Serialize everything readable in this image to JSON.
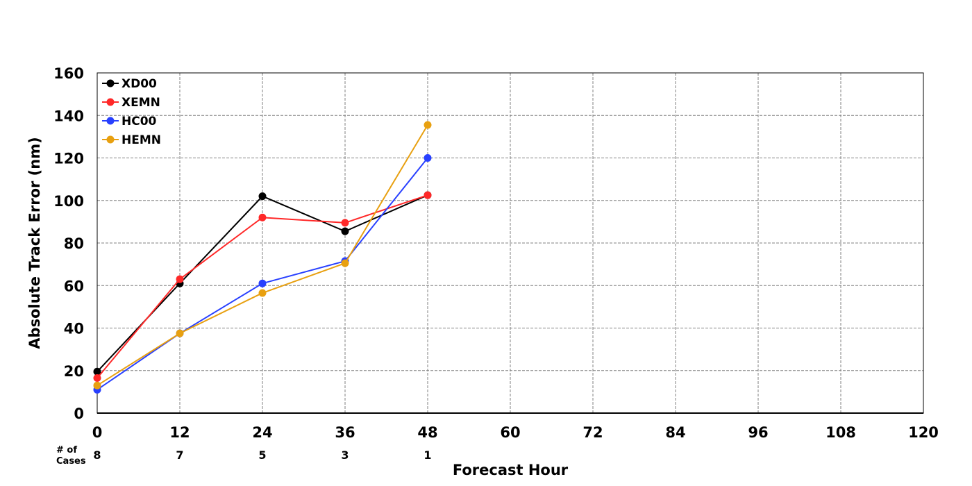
{
  "chart_data": {
    "type": "line",
    "xlabel": "Forecast Hour",
    "ylabel": "Absolute Track Error (nm)",
    "xlim": [
      0,
      120
    ],
    "ylim": [
      0,
      160
    ],
    "xticks": [
      0,
      12,
      24,
      36,
      48,
      60,
      72,
      84,
      96,
      108,
      120
    ],
    "yticks": [
      0,
      20,
      40,
      60,
      80,
      100,
      120,
      140,
      160
    ],
    "grid": true,
    "legend_position": "top-left",
    "x": [
      0,
      12,
      24,
      36,
      48
    ],
    "series": [
      {
        "name": "XD00",
        "color": "#000000",
        "values": [
          19.5,
          61,
          102,
          85.5,
          102.5
        ]
      },
      {
        "name": "XEMN",
        "color": "#ff2828",
        "values": [
          16.5,
          63,
          92,
          89.5,
          102.5
        ]
      },
      {
        "name": "HC00",
        "color": "#2840ff",
        "values": [
          11,
          37.5,
          61,
          71.5,
          120
        ]
      },
      {
        "name": "HEMN",
        "color": "#e8a010",
        "values": [
          13,
          37.5,
          56.5,
          70.5,
          135.5
        ]
      }
    ],
    "cases_label_line1": "# of",
    "cases_label_line2": "Cases",
    "cases": [
      {
        "hour": 0,
        "count": "8"
      },
      {
        "hour": 12,
        "count": "7"
      },
      {
        "hour": 24,
        "count": "5"
      },
      {
        "hour": 36,
        "count": "3"
      },
      {
        "hour": 48,
        "count": "1"
      }
    ]
  }
}
